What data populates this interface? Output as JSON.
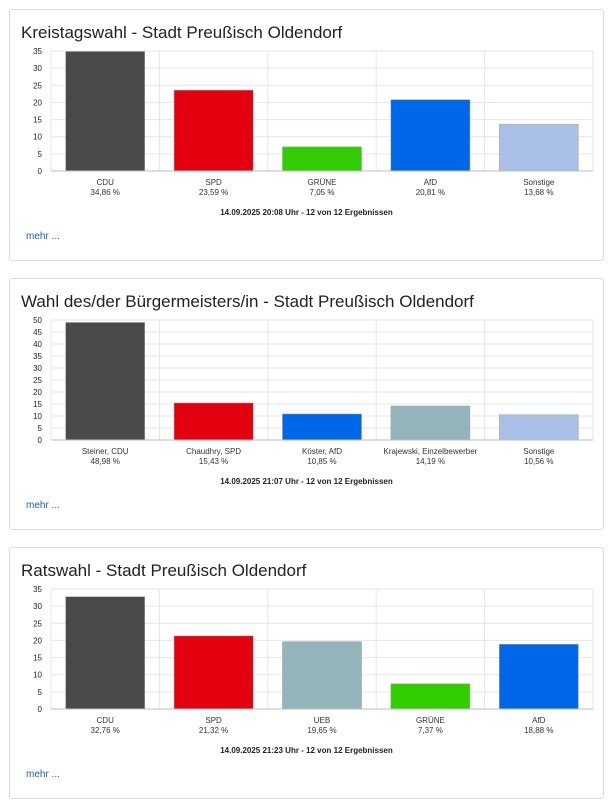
{
  "chart_data": [
    {
      "type": "bar",
      "title": "Kreistagswahl - Stadt Preußisch Oldendorf",
      "categories": [
        "CDU",
        "SPD",
        "GRÜNE",
        "AfD",
        "Sonstige"
      ],
      "values": [
        34.86,
        23.59,
        7.05,
        20.81,
        13.68
      ],
      "value_labels": [
        "34,86 %",
        "23,59 %",
        "7,05 %",
        "20,81 %",
        "13,68 %"
      ],
      "colors": [
        "#4a4a4a",
        "#e3000f",
        "#32cd00",
        "#0068e8",
        "#aabfe6"
      ],
      "ylim": [
        0,
        35
      ],
      "yticks": [
        0,
        5,
        10,
        15,
        20,
        25,
        30,
        35
      ],
      "grid": true,
      "timestamp": "14.09.2025 20:08 Uhr - 12 von 12 Ergebnissen",
      "more_label": "mehr ..."
    },
    {
      "type": "bar",
      "title": "Wahl des/der Bürgermeisters/in - Stadt Preußisch Oldendorf",
      "categories": [
        "Steiner, CDU",
        "Chaudhry, SPD",
        "Köster, AfD",
        "Krajewski, Einzelbewerber",
        "Sonstige"
      ],
      "values": [
        48.98,
        15.43,
        10.85,
        14.19,
        10.56
      ],
      "value_labels": [
        "48,98 %",
        "15,43 %",
        "10,85 %",
        "14,19 %",
        "10,56 %"
      ],
      "colors": [
        "#4a4a4a",
        "#e3000f",
        "#0068e8",
        "#93b4ba",
        "#aabfe6"
      ],
      "ylim": [
        0,
        50
      ],
      "yticks": [
        0,
        5,
        10,
        15,
        20,
        25,
        30,
        35,
        40,
        45,
        50
      ],
      "grid": true,
      "timestamp": "14.09.2025 21:07 Uhr - 12 von 12 Ergebnissen",
      "more_label": "mehr ..."
    },
    {
      "type": "bar",
      "title": "Ratswahl - Stadt Preußisch Oldendorf",
      "categories": [
        "CDU",
        "SPD",
        "UEB",
        "GRÜNE",
        "AfD"
      ],
      "values": [
        32.76,
        21.32,
        19.65,
        7.37,
        18.88
      ],
      "value_labels": [
        "32,76 %",
        "21,32 %",
        "19,65 %",
        "7,37 %",
        "18,88 %"
      ],
      "colors": [
        "#4a4a4a",
        "#e3000f",
        "#93b4ba",
        "#32cd00",
        "#0068e8"
      ],
      "ylim": [
        0,
        35
      ],
      "yticks": [
        0,
        5,
        10,
        15,
        20,
        25,
        30,
        35
      ],
      "grid": true,
      "timestamp": "14.09.2025 21:23 Uhr - 12 von 12 Ergebnissen",
      "more_label": "mehr ..."
    }
  ]
}
